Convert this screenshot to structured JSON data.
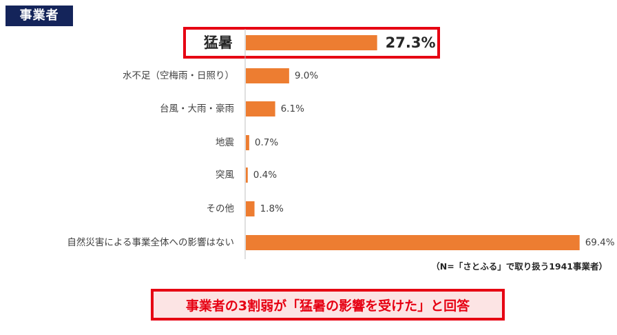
{
  "header": {
    "tag": "事業者"
  },
  "chart_data": {
    "type": "bar",
    "orientation": "horizontal",
    "categories": [
      "猛暑",
      "水不足（空梅雨・日照り）",
      "台風・大雨・豪雨",
      "地震",
      "突風",
      "その他",
      "自然災害による事業全体への影響はない"
    ],
    "values": [
      27.3,
      9.0,
      6.1,
      0.7,
      0.4,
      1.8,
      69.4
    ],
    "value_labels": [
      "27.3%",
      "9.0%",
      "6.1%",
      "0.7%",
      "0.4%",
      "1.8%",
      "69.4%"
    ],
    "unit": "%",
    "xlim": [
      0,
      70
    ],
    "highlight_index": 0,
    "bar_color": "#ed7d31",
    "highlight_color": "#e60012",
    "grid": false
  },
  "note": "（N=「さとふる」で取り扱う1941事業者）",
  "conclusion": "事業者の3割弱が「猛暑の影響を受けた」と回答"
}
